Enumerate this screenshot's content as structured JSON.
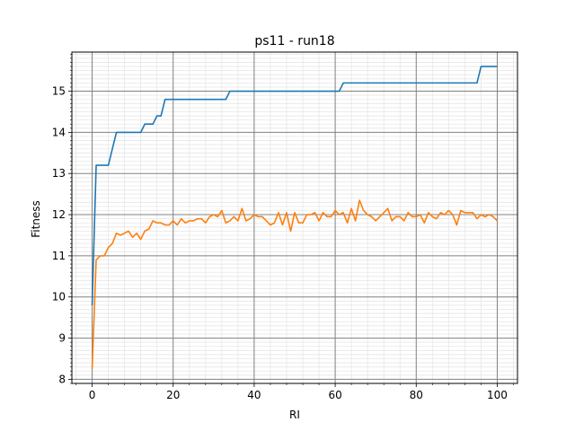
{
  "chart_data": {
    "type": "line",
    "title": "ps11 - run18",
    "xlabel": "RI",
    "ylabel": "Fitness",
    "xlim": [
      -5,
      105
    ],
    "ylim": [
      7.9,
      15.95
    ],
    "grid": true,
    "minor_grid": true,
    "legend": "none",
    "xticks": [
      0,
      20,
      40,
      60,
      80,
      100
    ],
    "yticks": [
      8,
      9,
      10,
      11,
      12,
      13,
      14,
      15
    ],
    "series": [
      {
        "color": "#1f77b4",
        "x": [
          0,
          1,
          2,
          3,
          4,
          5,
          6,
          7,
          8,
          9,
          10,
          11,
          12,
          13,
          14,
          15,
          16,
          17,
          18,
          19,
          20,
          21,
          22,
          23,
          24,
          25,
          26,
          27,
          28,
          29,
          30,
          31,
          32,
          33,
          34,
          35,
          36,
          37,
          38,
          39,
          40,
          41,
          42,
          43,
          44,
          45,
          46,
          47,
          48,
          49,
          50,
          51,
          52,
          53,
          54,
          55,
          56,
          57,
          58,
          59,
          60,
          61,
          62,
          63,
          64,
          65,
          66,
          67,
          68,
          69,
          70,
          71,
          72,
          73,
          74,
          75,
          76,
          77,
          78,
          79,
          80,
          81,
          82,
          83,
          84,
          85,
          86,
          87,
          88,
          89,
          90,
          91,
          92,
          93,
          94,
          95,
          96,
          97,
          98,
          99,
          100
        ],
        "y": [
          9.8,
          13.2,
          13.2,
          13.2,
          13.2,
          13.6,
          14.0,
          14.0,
          14.0,
          14.0,
          14.0,
          14.0,
          14.0,
          14.2,
          14.2,
          14.2,
          14.4,
          14.4,
          14.8,
          14.8,
          14.8,
          14.8,
          14.8,
          14.8,
          14.8,
          14.8,
          14.8,
          14.8,
          14.8,
          14.8,
          14.8,
          14.8,
          14.8,
          14.8,
          15.0,
          15.0,
          15.0,
          15.0,
          15.0,
          15.0,
          15.0,
          15.0,
          15.0,
          15.0,
          15.0,
          15.0,
          15.0,
          15.0,
          15.0,
          15.0,
          15.0,
          15.0,
          15.0,
          15.0,
          15.0,
          15.0,
          15.0,
          15.0,
          15.0,
          15.0,
          15.0,
          15.0,
          15.2,
          15.2,
          15.2,
          15.2,
          15.2,
          15.2,
          15.2,
          15.2,
          15.2,
          15.2,
          15.2,
          15.2,
          15.2,
          15.2,
          15.2,
          15.2,
          15.2,
          15.2,
          15.2,
          15.2,
          15.2,
          15.2,
          15.2,
          15.2,
          15.2,
          15.2,
          15.2,
          15.2,
          15.2,
          15.2,
          15.2,
          15.2,
          15.2,
          15.2,
          15.6,
          15.6,
          15.6,
          15.6,
          15.6
        ]
      },
      {
        "color": "#ff7f0e",
        "x": [
          0,
          1,
          2,
          3,
          4,
          5,
          6,
          7,
          8,
          9,
          10,
          11,
          12,
          13,
          14,
          15,
          16,
          17,
          18,
          19,
          20,
          21,
          22,
          23,
          24,
          25,
          26,
          27,
          28,
          29,
          30,
          31,
          32,
          33,
          34,
          35,
          36,
          37,
          38,
          39,
          40,
          41,
          42,
          43,
          44,
          45,
          46,
          47,
          48,
          49,
          50,
          51,
          52,
          53,
          54,
          55,
          56,
          57,
          58,
          59,
          60,
          61,
          62,
          63,
          64,
          65,
          66,
          67,
          68,
          69,
          70,
          71,
          72,
          73,
          74,
          75,
          76,
          77,
          78,
          79,
          80,
          81,
          82,
          83,
          84,
          85,
          86,
          87,
          88,
          89,
          90,
          91,
          92,
          93,
          94,
          95,
          96,
          97,
          98,
          99,
          100
        ],
        "y": [
          8.25,
          10.9,
          11.0,
          11.0,
          11.2,
          11.3,
          11.55,
          11.5,
          11.55,
          11.6,
          11.45,
          11.55,
          11.4,
          11.6,
          11.65,
          11.85,
          11.8,
          11.8,
          11.75,
          11.75,
          11.85,
          11.75,
          11.9,
          11.8,
          11.85,
          11.85,
          11.9,
          11.9,
          11.8,
          11.95,
          12.0,
          11.95,
          12.1,
          11.8,
          11.85,
          11.95,
          11.85,
          12.15,
          11.85,
          11.9,
          12.0,
          11.95,
          11.95,
          11.85,
          11.75,
          11.8,
          12.05,
          11.75,
          12.05,
          11.6,
          12.05,
          11.8,
          11.8,
          12.0,
          12.0,
          12.05,
          11.85,
          12.05,
          11.95,
          11.95,
          12.1,
          12.0,
          12.05,
          11.8,
          12.15,
          11.85,
          12.35,
          12.1,
          12.0,
          11.95,
          11.85,
          11.95,
          12.05,
          12.15,
          11.85,
          11.95,
          11.95,
          11.85,
          12.05,
          11.95,
          11.95,
          12.0,
          11.8,
          12.05,
          11.95,
          11.9,
          12.05,
          12.0,
          12.1,
          12.0,
          11.75,
          12.1,
          12.05,
          12.05,
          12.05,
          11.9,
          12.0,
          11.95,
          12.0,
          11.95,
          11.85
        ]
      }
    ]
  }
}
